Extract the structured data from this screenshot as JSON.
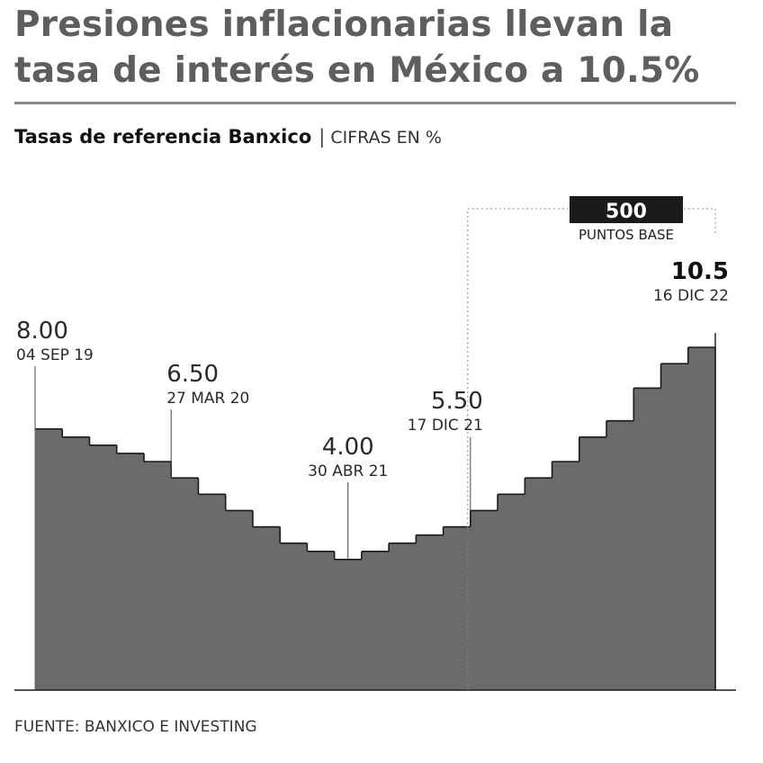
{
  "header": {
    "title_line1": "Presiones inflacionarias llevan la",
    "title_line2": "tasa de interés en México a 10.5%",
    "subtitle_strong": "Tasas de referencia Banxico",
    "subtitle_sep": "|",
    "subtitle_units": "CIFRAS EN %"
  },
  "footer": {
    "source": "FUENTE: BANXICO E INVESTING"
  },
  "colors": {
    "area": "#6b6b6e",
    "step_line": "#1a1a1a",
    "badge": "#1a1a1a",
    "rule": "#8a8a8a",
    "title": "#5e5e5e"
  },
  "chart_data": {
    "type": "area",
    "step": true,
    "values": [
      8.0,
      7.75,
      7.5,
      7.25,
      7.0,
      6.5,
      6.0,
      5.5,
      5.0,
      4.5,
      4.25,
      4.0,
      4.25,
      4.5,
      4.75,
      5.0,
      5.5,
      6.0,
      6.5,
      7.0,
      7.75,
      8.25,
      9.25,
      10.0,
      10.5
    ],
    "ylim": [
      0,
      10.5
    ],
    "annotations": [
      {
        "index": 0,
        "value": "8.00",
        "date": "04 SEP 19"
      },
      {
        "index": 5,
        "value": "6.50",
        "date": "27 MAR 20"
      },
      {
        "index": 11,
        "value": "4.00",
        "date": "30 ABR 21"
      },
      {
        "index": 16,
        "value": "5.50",
        "date": "17 DIC 21"
      },
      {
        "index": 24,
        "value": "10.5",
        "date": "16 DIC 22",
        "bold": true
      }
    ],
    "bracket": {
      "from_index": 16,
      "to_index": 24,
      "value": "500",
      "caption": "PUNTOS BASE"
    }
  }
}
